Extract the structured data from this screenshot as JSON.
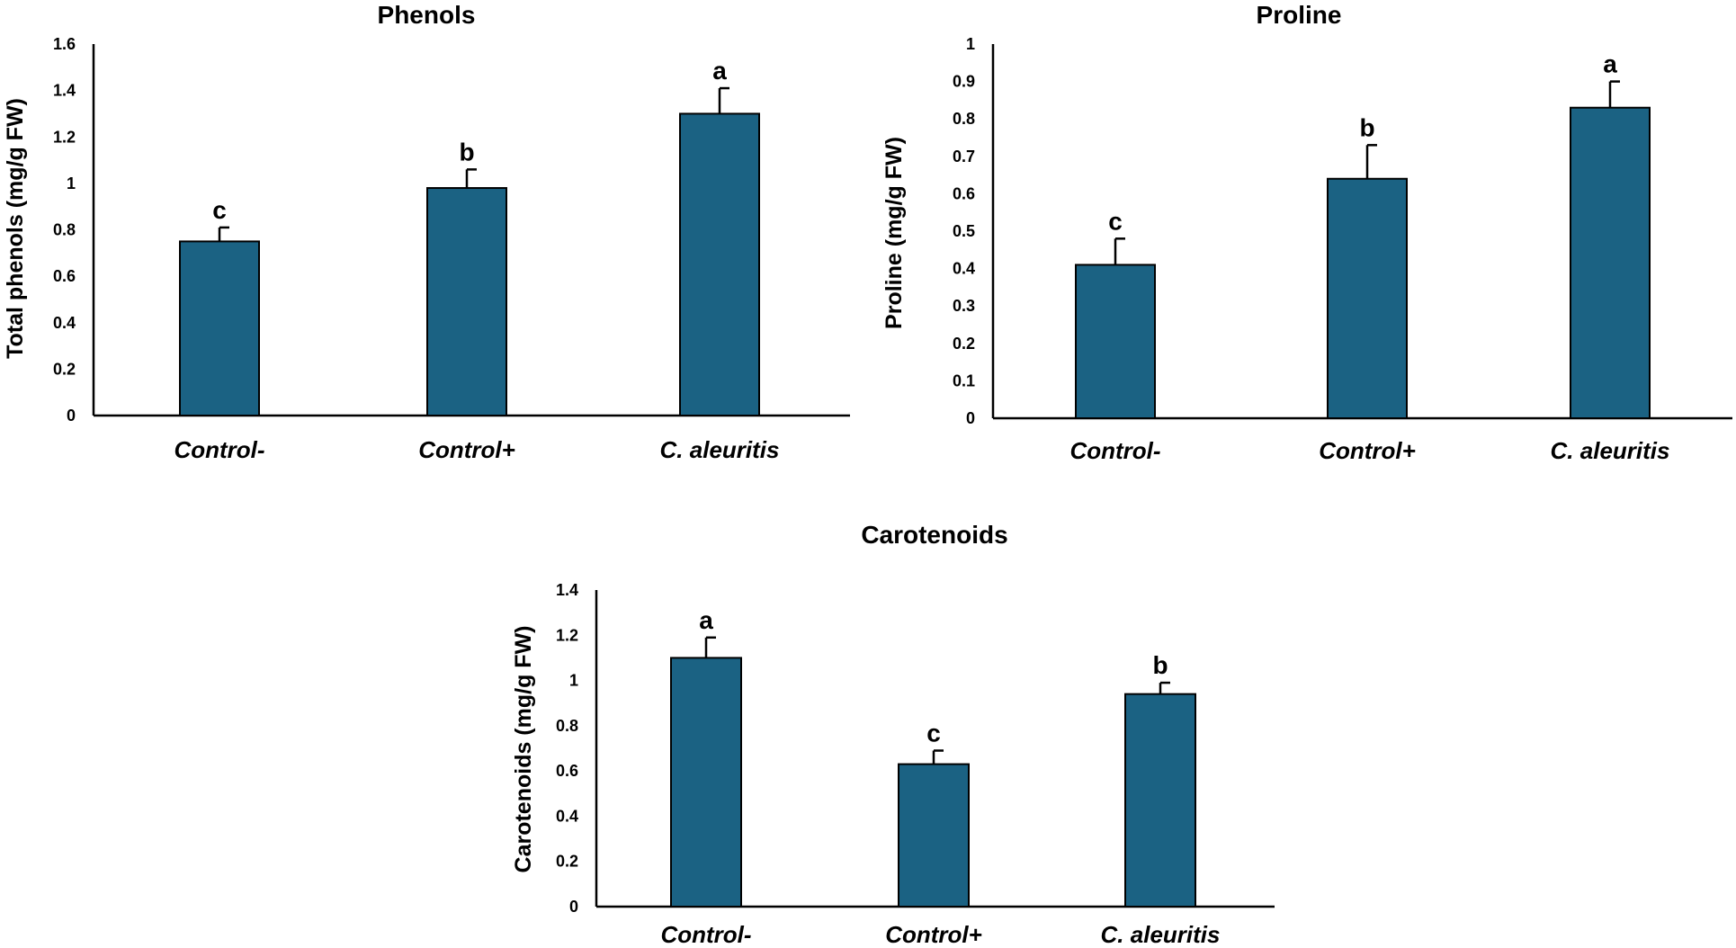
{
  "chart_data": [
    {
      "type": "bar",
      "title": "Phenols",
      "xlabel": "",
      "ylabel": "Total phenols (mg/g FW)",
      "categories": [
        "Control-",
        "Control+",
        "C. aleuritis"
      ],
      "values": [
        0.75,
        0.98,
        1.3
      ],
      "errors": [
        0.06,
        0.08,
        0.11
      ],
      "significance": [
        "c",
        "b",
        "a"
      ],
      "ylim": [
        0,
        1.6
      ],
      "yticks": [
        "0",
        "0.2",
        "0.4",
        "0.6",
        "0.8",
        "1",
        "1.2",
        "1.4",
        "1.6"
      ],
      "bar_color": "#1b6283"
    },
    {
      "type": "bar",
      "title": "Proline",
      "xlabel": "",
      "ylabel": "Proline (mg/g FW)",
      "categories": [
        "Control-",
        "Control+",
        "C. aleuritis"
      ],
      "values": [
        0.41,
        0.64,
        0.83
      ],
      "errors": [
        0.07,
        0.09,
        0.07
      ],
      "significance": [
        "c",
        "b",
        "a"
      ],
      "ylim": [
        0,
        1
      ],
      "yticks": [
        "0",
        "0.1",
        "0.2",
        "0.3",
        "0.4",
        "0.5",
        "0.6",
        "0.7",
        "0.8",
        "0.9",
        "1"
      ],
      "bar_color": "#1b6283"
    },
    {
      "type": "bar",
      "title": "Carotenoids",
      "xlabel": "",
      "ylabel": "Carotenoids (mg/g FW)",
      "categories": [
        "Control-",
        "Control+",
        "C. aleuritis"
      ],
      "values": [
        1.1,
        0.63,
        0.94
      ],
      "errors": [
        0.09,
        0.06,
        0.05
      ],
      "significance": [
        "a",
        "c",
        "b"
      ],
      "ylim": [
        0,
        1.4
      ],
      "yticks": [
        "0",
        "0.2",
        "0.4",
        "0.6",
        "0.8",
        "1",
        "1.2",
        "1.4"
      ],
      "bar_color": "#1b6283"
    }
  ]
}
